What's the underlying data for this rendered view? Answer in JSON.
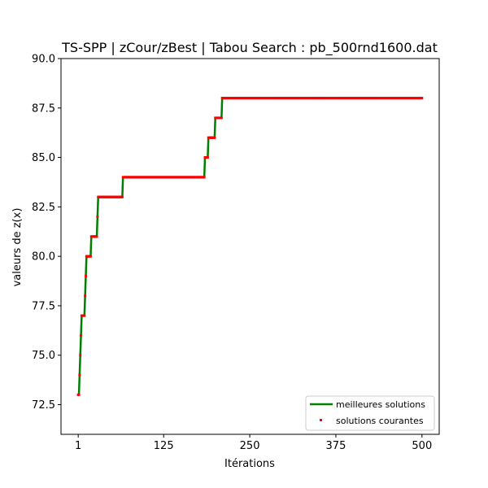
{
  "chart_data": {
    "type": "line",
    "title": "TS-SPP | zCour/zBest | Tabou Search : pb_500rnd1600.dat",
    "xlabel": "Itérations",
    "ylabel": "valeurs de z(x)",
    "xlim": [
      -24,
      525
    ],
    "ylim": [
      71,
      90
    ],
    "xticks": [
      1,
      125,
      250,
      375,
      500
    ],
    "yticks": [
      72.5,
      75.0,
      77.5,
      80.0,
      82.5,
      85.0,
      87.5,
      90.0
    ],
    "xtick_labels": [
      "1",
      "125",
      "250",
      "375",
      "500"
    ],
    "ytick_labels": [
      "72.5",
      "75.0",
      "77.5",
      "80.0",
      "82.5",
      "85.0",
      "87.5",
      "90.0"
    ],
    "grid": false,
    "legend_position": "lower-right",
    "series": [
      {
        "name": "meilleures solutions",
        "style": "line",
        "color": "#008000",
        "points": [
          [
            1,
            73
          ],
          [
            2,
            73
          ],
          [
            3,
            74
          ],
          [
            4,
            75
          ],
          [
            5,
            76
          ],
          [
            6,
            77
          ],
          [
            10,
            77
          ],
          [
            11,
            78
          ],
          [
            12,
            79
          ],
          [
            13,
            80
          ],
          [
            19,
            80
          ],
          [
            20,
            81
          ],
          [
            28,
            81
          ],
          [
            29,
            82
          ],
          [
            30,
            83
          ],
          [
            65,
            83
          ],
          [
            66,
            84
          ],
          [
            184,
            84
          ],
          [
            185,
            85
          ],
          [
            189,
            85
          ],
          [
            190,
            86
          ],
          [
            199,
            86
          ],
          [
            200,
            87
          ],
          [
            209,
            87
          ],
          [
            210,
            88
          ],
          [
            500,
            88
          ]
        ]
      },
      {
        "name": "solutions courantes",
        "style": "markers",
        "color": "#ff0000",
        "segments": [
          [
            1,
            2,
            73
          ],
          [
            3,
            3,
            74
          ],
          [
            4,
            4,
            75
          ],
          [
            5,
            5,
            76
          ],
          [
            6,
            10,
            77
          ],
          [
            11,
            11,
            78
          ],
          [
            12,
            12,
            79
          ],
          [
            13,
            19,
            80
          ],
          [
            20,
            28,
            81
          ],
          [
            29,
            29,
            82
          ],
          [
            30,
            65,
            83
          ],
          [
            66,
            184,
            84
          ],
          [
            185,
            189,
            85
          ],
          [
            190,
            199,
            86
          ],
          [
            200,
            209,
            87
          ],
          [
            210,
            500,
            88
          ]
        ]
      }
    ]
  }
}
